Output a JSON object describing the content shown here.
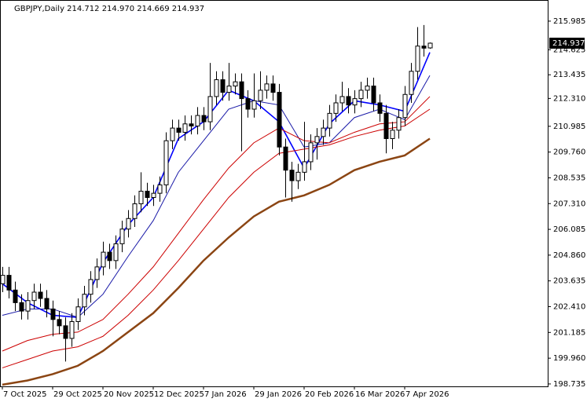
{
  "chart_data": {
    "type": "candlestick",
    "title": "GBPJPY,Daily  214.712 214.970 214.669 214.937",
    "categories": [
      "7 Oct 2025",
      null,
      null,
      null,
      null,
      null,
      null,
      null,
      "29 Oct 2025",
      null,
      null,
      null,
      null,
      null,
      null,
      null,
      "20 Nov 2025",
      null,
      null,
      null,
      null,
      null,
      null,
      null,
      "12 Dec 2025",
      null,
      null,
      null,
      null,
      null,
      null,
      null,
      "7 Jan 2026",
      null,
      null,
      null,
      null,
      null,
      null,
      null,
      "29 Jan 2026",
      null,
      null,
      null,
      null,
      null,
      null,
      null,
      "20 Feb 2026",
      null,
      null,
      null,
      null,
      null,
      null,
      null,
      "16 Mar 2026",
      null,
      null,
      null,
      null,
      null,
      null,
      null,
      "7 Apr 2026",
      null,
      null,
      null,
      null
    ],
    "open": [
      203.5,
      203.9,
      203.2,
      202.6,
      202.2,
      202.7,
      203.1,
      202.8,
      202.3,
      201.8,
      201.5,
      200.9,
      201.7,
      202.4,
      203.0,
      203.7,
      204.3,
      205.0,
      204.6,
      205.4,
      206.1,
      206.6,
      207.3,
      207.9,
      207.6,
      207.8,
      208.2,
      210.3,
      210.9,
      210.7,
      211.1,
      211.0,
      211.5,
      211.2,
      212.4,
      213.2,
      212.6,
      212.9,
      213.1,
      212.3,
      211.8,
      212.2,
      212.7,
      213.0,
      212.6,
      210.0,
      208.9,
      208.4,
      208.8,
      209.3,
      210.2,
      210.5,
      210.9,
      211.6,
      212.1,
      212.4,
      212.0,
      212.3,
      212.7,
      212.9,
      212.1,
      211.6,
      210.4,
      210.8,
      211.4,
      212.5,
      213.6,
      214.8,
      214.712
    ],
    "high": [
      204.3,
      204.3,
      203.6,
      203.0,
      203.1,
      203.5,
      203.5,
      203.2,
      202.7,
      202.2,
      201.9,
      202.1,
      202.8,
      203.4,
      204.1,
      204.7,
      205.5,
      205.4,
      205.8,
      206.5,
      207.0,
      207.7,
      208.8,
      208.3,
      208.2,
      208.6,
      210.7,
      211.3,
      211.3,
      211.5,
      211.5,
      211.9,
      211.9,
      214.0,
      213.6,
      213.6,
      214.0,
      213.5,
      213.5,
      212.7,
      213.5,
      213.6,
      213.4,
      213.4,
      213.0,
      210.4,
      209.3,
      209.2,
      211.2,
      210.6,
      210.9,
      211.3,
      212.0,
      212.5,
      213.1,
      212.8,
      212.7,
      213.1,
      213.3,
      213.3,
      212.5,
      212.0,
      211.2,
      211.8,
      212.9,
      214.0,
      215.7,
      215.8,
      214.97
    ],
    "low": [
      203.1,
      202.8,
      202.2,
      201.8,
      201.8,
      202.3,
      202.4,
      201.9,
      201.0,
      201.1,
      199.8,
      200.5,
      201.3,
      202.0,
      202.6,
      203.3,
      203.9,
      204.2,
      204.2,
      205.0,
      205.7,
      206.2,
      206.9,
      207.2,
      207.2,
      207.4,
      207.8,
      209.9,
      210.3,
      210.3,
      210.6,
      210.6,
      210.8,
      210.8,
      212.0,
      212.2,
      212.2,
      212.5,
      209.8,
      211.4,
      211.4,
      211.8,
      212.3,
      212.2,
      209.6,
      207.6,
      207.4,
      208.0,
      208.4,
      208.9,
      209.4,
      210.1,
      210.5,
      211.2,
      211.7,
      211.6,
      211.6,
      211.9,
      212.3,
      211.7,
      211.2,
      209.7,
      209.9,
      210.4,
      211.0,
      212.1,
      213.2,
      214.3,
      214.669
    ],
    "close": [
      203.9,
      203.2,
      202.6,
      202.2,
      202.7,
      203.1,
      202.8,
      202.3,
      201.8,
      201.5,
      200.9,
      201.7,
      202.4,
      203.0,
      203.7,
      204.3,
      205.0,
      204.6,
      205.4,
      206.1,
      206.6,
      207.3,
      207.9,
      207.6,
      207.8,
      208.2,
      210.3,
      210.9,
      210.7,
      211.1,
      211.0,
      211.5,
      211.2,
      212.4,
      213.2,
      212.6,
      212.9,
      213.1,
      212.3,
      211.8,
      212.2,
      212.7,
      213.0,
      212.6,
      210.0,
      208.9,
      208.4,
      208.8,
      209.3,
      210.2,
      210.5,
      210.9,
      211.6,
      212.1,
      212.4,
      212.0,
      212.3,
      212.7,
      212.9,
      212.1,
      211.6,
      210.4,
      210.8,
      211.4,
      212.5,
      213.6,
      214.8,
      214.7,
      214.937
    ],
    "lines": [
      {
        "color": "#0000ff",
        "width": 1.6,
        "x": [
          0,
          4,
          8,
          12,
          16,
          20,
          24,
          28,
          32,
          36,
          40,
          44,
          48,
          52,
          56,
          60,
          64,
          68
        ],
        "values": [
          203.5,
          202.6,
          202.0,
          201.9,
          204.5,
          206.3,
          207.6,
          210.4,
          211.2,
          212.7,
          212.2,
          211.2,
          209.0,
          211.1,
          212.2,
          212.0,
          211.7,
          214.5
        ]
      },
      {
        "color": "#1a1aa8",
        "width": 1,
        "x": [
          0,
          4,
          8,
          12,
          16,
          20,
          24,
          28,
          32,
          36,
          40,
          44,
          48,
          52,
          56,
          60,
          64,
          68
        ],
        "values": [
          202.0,
          202.3,
          202.3,
          201.9,
          203.0,
          204.8,
          206.5,
          208.8,
          210.3,
          211.8,
          212.2,
          212.0,
          210.0,
          210.2,
          211.4,
          211.8,
          211.3,
          213.4
        ]
      },
      {
        "color": "#cc0000",
        "width": 1,
        "x": [
          0,
          4,
          8,
          12,
          16,
          20,
          24,
          28,
          32,
          36,
          40,
          44,
          48,
          52,
          56,
          60,
          64,
          68
        ],
        "values": [
          200.3,
          200.8,
          201.1,
          201.2,
          201.8,
          203.0,
          204.3,
          205.9,
          207.5,
          209.0,
          210.2,
          210.9,
          210.3,
          210.2,
          210.7,
          211.1,
          211.2,
          212.4
        ]
      },
      {
        "color": "#cc0000",
        "width": 1,
        "x": [
          0,
          4,
          8,
          12,
          16,
          20,
          24,
          28,
          32,
          36,
          40,
          44,
          48,
          52,
          56,
          60,
          64,
          68
        ],
        "values": [
          199.5,
          199.9,
          200.3,
          200.5,
          201.0,
          202.0,
          203.2,
          204.6,
          206.1,
          207.6,
          208.8,
          209.7,
          209.9,
          210.1,
          210.5,
          210.8,
          211.0,
          211.8
        ]
      },
      {
        "color": "#8b4513",
        "width": 2.5,
        "x": [
          0,
          4,
          8,
          12,
          16,
          20,
          24,
          28,
          32,
          36,
          40,
          44,
          48,
          52,
          56,
          60,
          64,
          68
        ],
        "values": [
          198.7,
          198.9,
          199.2,
          199.6,
          200.3,
          201.2,
          202.1,
          203.3,
          204.6,
          205.7,
          206.7,
          207.4,
          207.7,
          208.2,
          208.9,
          209.3,
          209.6,
          210.4
        ]
      }
    ],
    "up_color": "#ffffff",
    "down_color": "#000000",
    "outline_color": "#000000",
    "ylim": [
      198.62,
      216.99
    ],
    "yticks": [
      215.985,
      214.625,
      213.435,
      {
        "value": 212.31,
        "label": "212.310"
      },
      210.985,
      {
        "value": 209.76,
        "label": "209.760"
      },
      208.535,
      {
        "value": 207.31,
        "label": "207.310"
      },
      206.085,
      {
        "value": 204.86,
        "label": "204.860"
      },
      203.635,
      {
        "value": 202.41,
        "label": "202.410"
      },
      201.185,
      {
        "value": 199.96,
        "label": "199.960"
      },
      198.735
    ]
  }
}
